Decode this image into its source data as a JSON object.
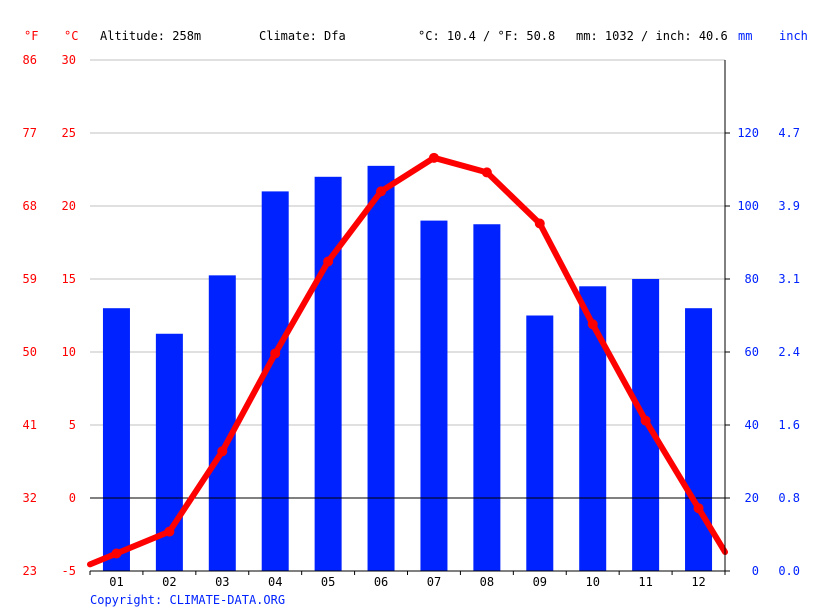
{
  "header": {
    "unit_f": "°F",
    "unit_c": "°C",
    "altitude": "Altitude: 258m",
    "climate": "Climate: Dfa",
    "temp_avg": "°C: 10.4 / °F: 50.8",
    "precip_total": "mm: 1032 / inch: 40.6",
    "unit_mm": "mm",
    "unit_inch": "inch"
  },
  "copyright": "Copyright: CLIMATE-DATA.ORG",
  "colors": {
    "temp": "#ff0000",
    "precip": "#0022ff",
    "text": "#000000",
    "grid": "#c0c0c0"
  },
  "chart_data": {
    "type": "bar",
    "categories": [
      "01",
      "02",
      "03",
      "04",
      "05",
      "06",
      "07",
      "08",
      "09",
      "10",
      "11",
      "12"
    ],
    "series": [
      {
        "type": "bar",
        "axis": "mm",
        "values": [
          72,
          65,
          81,
          104,
          108,
          111,
          96,
          95,
          70,
          78,
          80,
          72
        ]
      },
      {
        "type": "line",
        "axis": "°C",
        "values": [
          -3.8,
          -2.3,
          3.2,
          9.9,
          16.2,
          21.0,
          23.3,
          22.3,
          18.8,
          11.9,
          5.3,
          -0.7
        ]
      }
    ],
    "temp_axis_c": {
      "ticks": [
        -5,
        0,
        5,
        10,
        15,
        20,
        25,
        30
      ],
      "range": [
        -5,
        30
      ]
    },
    "temp_axis_f": {
      "ticks": [
        23,
        32,
        41,
        50,
        59,
        68,
        77,
        86
      ]
    },
    "precip_axis_mm": {
      "ticks": [
        0,
        20,
        40,
        60,
        80,
        100,
        120
      ],
      "range": [
        0,
        140
      ]
    },
    "precip_axis_inch": {
      "ticks": [
        "0.0",
        "0.8",
        "1.6",
        "2.4",
        "3.1",
        "3.9",
        "4.7"
      ]
    },
    "grid": true
  }
}
